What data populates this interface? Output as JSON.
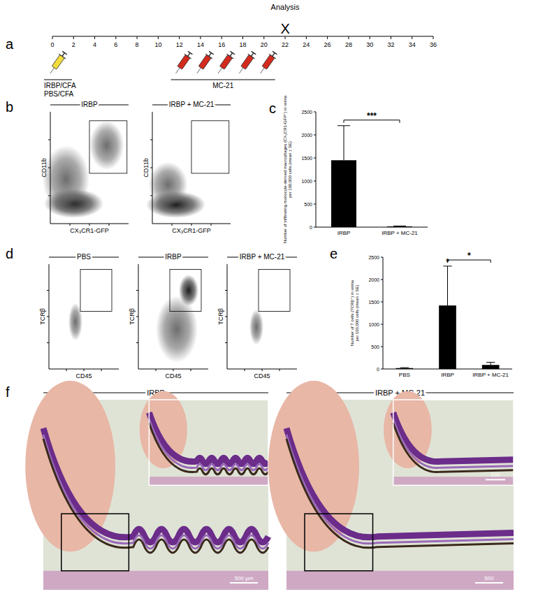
{
  "timeline": {
    "label": "a",
    "title": "Analysis",
    "xlim": [
      0,
      36
    ],
    "ticks": [
      0,
      2,
      4,
      6,
      8,
      10,
      12,
      14,
      16,
      18,
      20,
      22,
      24,
      26,
      28,
      30,
      32,
      34,
      36
    ],
    "analysis_day": 22,
    "analysis_marker": "X",
    "immunization_day": 0,
    "immunization_labels": [
      "IRBP/CFA",
      "PBS/CFA"
    ],
    "mc21_days": [
      12,
      14,
      16,
      18,
      20
    ],
    "mc21_label": "MC-21"
  },
  "flow_b": {
    "label": "b",
    "plots": [
      {
        "title": "IRBP"
      },
      {
        "title": "IRBP + MC-21"
      }
    ],
    "x_label": "CX₃CR1-GFP",
    "y_label": "CD11b"
  },
  "flow_d": {
    "label": "d",
    "plots": [
      {
        "title": "PBS"
      },
      {
        "title": "IRBP"
      },
      {
        "title": "IRBP + MC-21"
      }
    ],
    "x_label": "CD45",
    "y_label": "TCRβ"
  },
  "chart_data": [
    {
      "label": "c",
      "type": "bar",
      "categories": [
        "IRBP",
        "IRBP + MC-21"
      ],
      "values": [
        1450,
        15
      ],
      "errors": [
        750,
        10
      ],
      "y_label": [
        "Number of infiltrating monocyte-derived macrophages (CX₃CR1-GFP⁺) in retina",
        "per 100,000 cells (mean ± SE)"
      ],
      "ylim": [
        0,
        2500
      ],
      "yticks": [
        0,
        500,
        1000,
        1500,
        2000,
        2500
      ],
      "color": "#000000",
      "annotations": [
        {
          "text": "***"
        }
      ]
    },
    {
      "label": "e",
      "type": "bar",
      "categories": [
        "PBS",
        "IRBP",
        "IRBP + MC-21"
      ],
      "values": [
        20,
        1420,
        90
      ],
      "errors": [
        10,
        880,
        60
      ],
      "y_label": [
        "Number of T cells (TCRβ⁺) in retina",
        "per 100,000 cells (mean ± SE)"
      ],
      "ylim": [
        0,
        2500
      ],
      "yticks": [
        0,
        500,
        1000,
        1500,
        2000,
        2500
      ],
      "color": "#000000",
      "annotations": [
        {
          "text": "*"
        },
        {
          "text": "*"
        }
      ]
    }
  ],
  "histology_f": {
    "label": "f",
    "panels": [
      {
        "title": "IRBP",
        "scale_bar": "500 µm"
      },
      {
        "title": "IRBP + MC-21",
        "scale_bar": "500",
        "inset_scale_bar": "100"
      }
    ]
  }
}
